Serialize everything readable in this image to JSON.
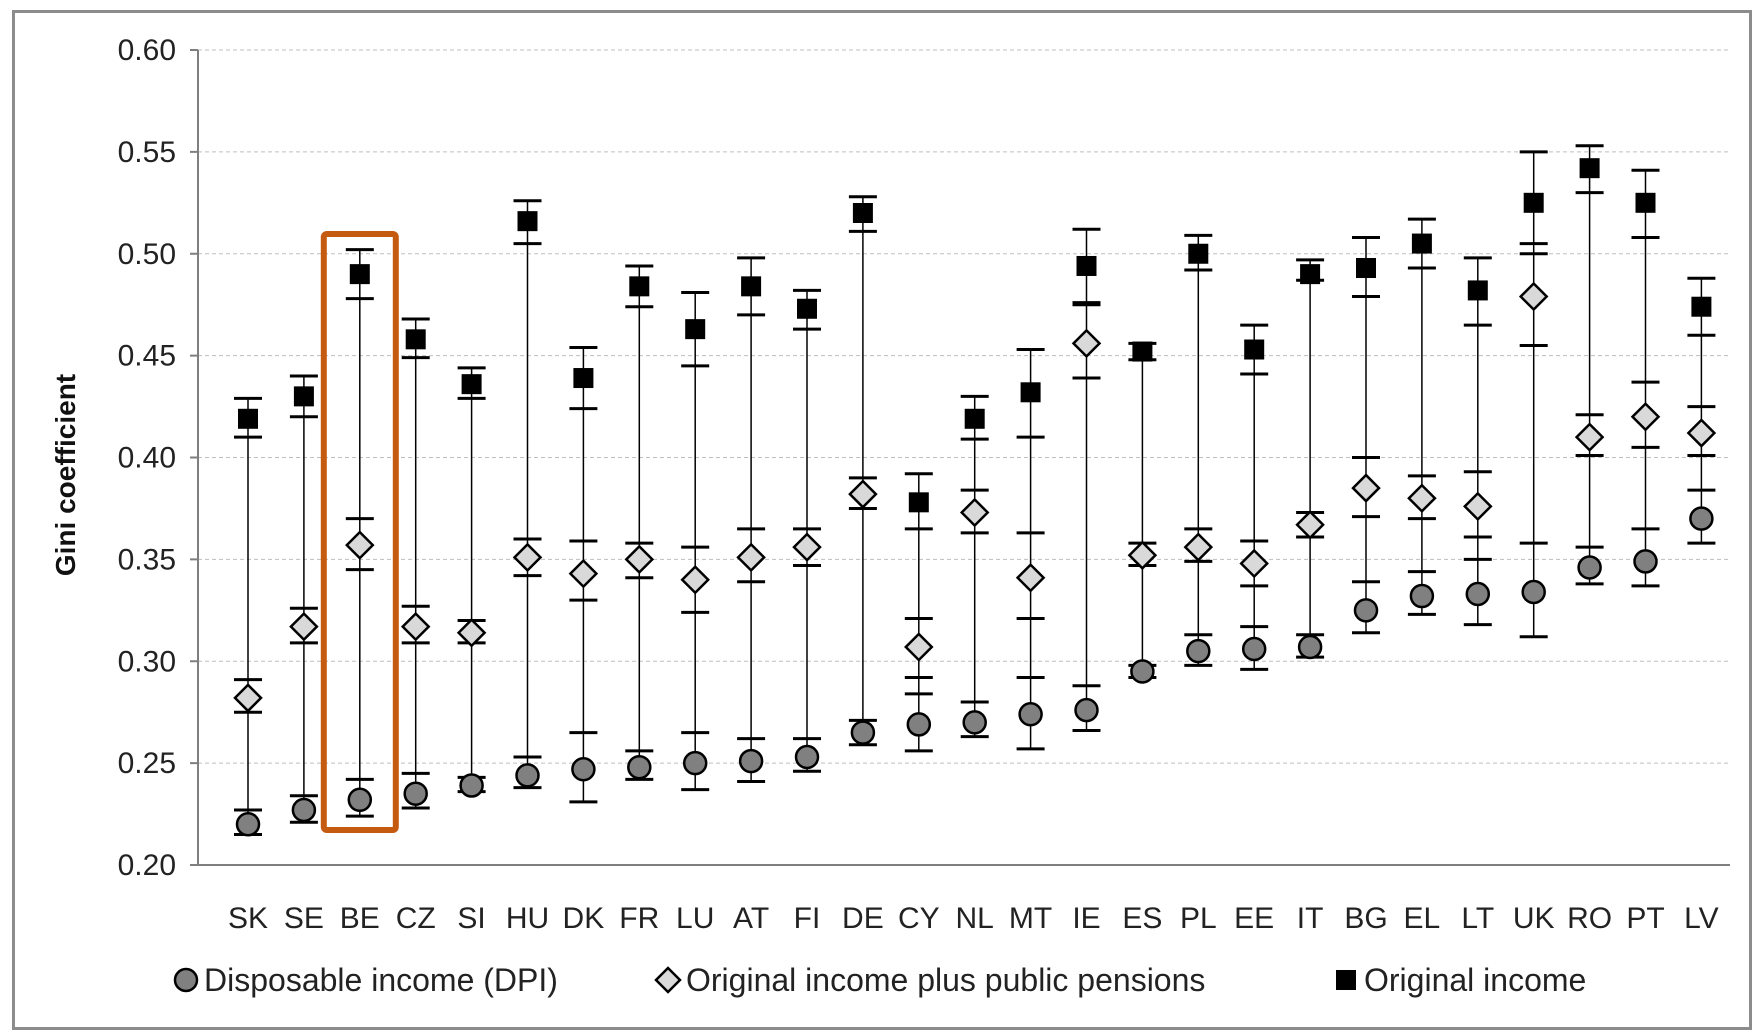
{
  "chart_data": {
    "type": "scatter",
    "title": "",
    "xlabel": "",
    "ylabel": "Gini coefficient",
    "ylim": [
      0.2,
      0.6
    ],
    "yticks": [
      "0.20",
      "0.25",
      "0.30",
      "0.35",
      "0.40",
      "0.45",
      "0.50",
      "0.55",
      "0.60"
    ],
    "grid": "horizontal dashed",
    "legend_position": "bottom",
    "highlight_category": "BE",
    "highlight_color": "#c55a11",
    "categories": [
      "SK",
      "SE",
      "BE",
      "CZ",
      "SI",
      "HU",
      "DK",
      "FR",
      "LU",
      "AT",
      "FI",
      "DE",
      "CY",
      "NL",
      "MT",
      "IE",
      "ES",
      "PL",
      "EE",
      "IT",
      "BG",
      "EL",
      "LT",
      "UK",
      "RO",
      "PT",
      "LV"
    ],
    "series": [
      {
        "name": "Disposable income (DPI)",
        "marker": "circle",
        "color": "#808080",
        "values": [
          0.22,
          0.227,
          0.232,
          0.235,
          0.239,
          0.244,
          0.247,
          0.248,
          0.25,
          0.251,
          0.253,
          0.265,
          0.269,
          0.27,
          0.274,
          0.276,
          0.295,
          0.305,
          0.306,
          0.307,
          0.325,
          0.332,
          0.333,
          0.334,
          0.346,
          0.349,
          0.37
        ],
        "lower": [
          0.215,
          0.221,
          0.224,
          0.228,
          0.236,
          0.238,
          0.231,
          0.242,
          0.237,
          0.241,
          0.246,
          0.259,
          0.256,
          0.263,
          0.257,
          0.266,
          0.292,
          0.298,
          0.296,
          0.302,
          0.314,
          0.323,
          0.318,
          0.312,
          0.338,
          0.337,
          0.358
        ],
        "upper": [
          0.227,
          0.234,
          0.242,
          0.245,
          0.243,
          0.253,
          0.265,
          0.256,
          0.265,
          0.262,
          0.262,
          0.271,
          0.284,
          0.28,
          0.292,
          0.288,
          0.298,
          0.313,
          0.317,
          0.313,
          0.339,
          0.344,
          0.35,
          0.358,
          0.356,
          0.365,
          0.384
        ]
      },
      {
        "name": "Original income plus public pensions",
        "marker": "diamond",
        "color": "#d9d9d9",
        "values": [
          0.282,
          0.317,
          0.357,
          0.317,
          0.314,
          0.351,
          0.343,
          0.35,
          0.34,
          0.351,
          0.356,
          0.382,
          0.307,
          0.373,
          0.341,
          0.456,
          0.352,
          0.356,
          0.348,
          0.367,
          0.385,
          0.38,
          0.376,
          0.479,
          0.41,
          0.42,
          0.412
        ],
        "lower": [
          0.275,
          0.309,
          0.345,
          0.309,
          0.309,
          0.342,
          0.33,
          0.341,
          0.324,
          0.339,
          0.347,
          0.375,
          0.292,
          0.363,
          0.321,
          0.439,
          0.347,
          0.349,
          0.337,
          0.361,
          0.371,
          0.37,
          0.361,
          0.455,
          0.401,
          0.405,
          0.401
        ],
        "upper": [
          0.291,
          0.326,
          0.37,
          0.327,
          0.32,
          0.36,
          0.359,
          0.358,
          0.356,
          0.365,
          0.365,
          0.39,
          0.321,
          0.384,
          0.363,
          0.475,
          0.358,
          0.365,
          0.359,
          0.373,
          0.4,
          0.391,
          0.393,
          0.5,
          0.421,
          0.437,
          0.425
        ]
      },
      {
        "name": "Original income",
        "marker": "square",
        "color": "#000000",
        "values": [
          0.419,
          0.43,
          0.49,
          0.458,
          0.436,
          0.516,
          0.439,
          0.484,
          0.463,
          0.484,
          0.473,
          0.52,
          0.378,
          0.419,
          0.432,
          0.494,
          0.452,
          0.5,
          0.453,
          0.49,
          0.493,
          0.505,
          0.482,
          0.525,
          0.542,
          0.525,
          0.474
        ],
        "lower": [
          0.41,
          0.42,
          0.478,
          0.449,
          0.429,
          0.505,
          0.424,
          0.474,
          0.445,
          0.47,
          0.463,
          0.511,
          0.365,
          0.409,
          0.41,
          0.476,
          0.448,
          0.492,
          0.441,
          0.487,
          0.479,
          0.493,
          0.465,
          0.505,
          0.53,
          0.508,
          0.46
        ],
        "upper": [
          0.429,
          0.44,
          0.502,
          0.468,
          0.444,
          0.526,
          0.454,
          0.494,
          0.481,
          0.498,
          0.482,
          0.528,
          0.392,
          0.43,
          0.453,
          0.512,
          0.456,
          0.509,
          0.465,
          0.497,
          0.508,
          0.517,
          0.498,
          0.55,
          0.553,
          0.541,
          0.488
        ]
      }
    ]
  }
}
